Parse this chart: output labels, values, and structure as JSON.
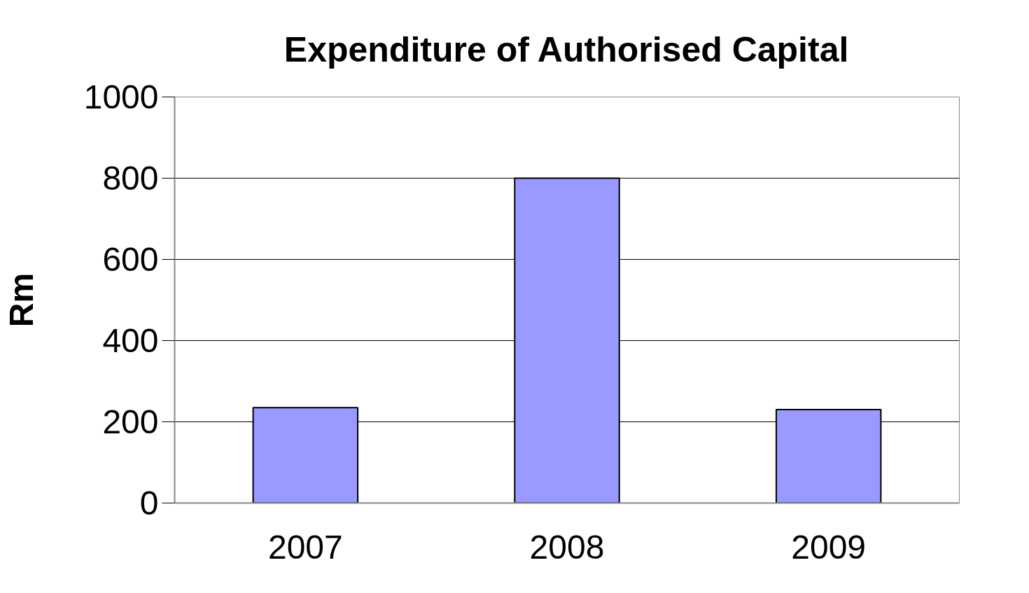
{
  "chart_data": {
    "type": "bar",
    "title": "Expenditure of Authorised Capital",
    "ylabel": "Rm",
    "categories": [
      "2007",
      "2008",
      "2009"
    ],
    "values": [
      235,
      800,
      230
    ],
    "color": "#9999ff",
    "ylim": [
      0,
      1000
    ],
    "yticks": [
      0,
      200,
      400,
      600,
      800,
      1000
    ],
    "grid": "y"
  }
}
